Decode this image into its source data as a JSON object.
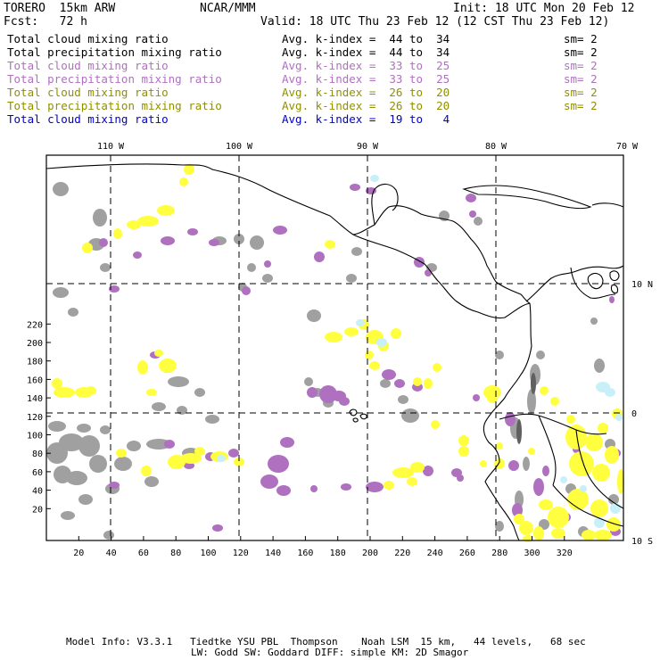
{
  "header": {
    "model": "TORERO  15km ARW",
    "org": "NCAR/MMM",
    "init": "Init: 18 UTC Mon 20 Feb 12",
    "fcst": "Fcst:   72 h",
    "valid": "Valid: 18 UTC Thu 23 Feb 12 (12 CST Thu 23 Feb 12)"
  },
  "legend": [
    {
      "field": "Total cloud mixing ratio",
      "index": "Avg. k-index =  44 to  34",
      "sm": "sm= 2",
      "color": "#000000"
    },
    {
      "field": "Total precipitation mixing ratio",
      "index": "Avg. k-index =  44 to  34",
      "sm": "sm= 2",
      "color": "#000000"
    },
    {
      "field": "Total cloud mixing ratio",
      "index": "Avg. k-index =  33 to  25",
      "sm": "sm= 2",
      "color": "#b070c0"
    },
    {
      "field": "Total precipitation mixing ratio",
      "index": "Avg. k-index =  33 to  25",
      "sm": "sm= 2",
      "color": "#b070c0"
    },
    {
      "field": "Total cloud mixing ratio",
      "index": "Avg. k-index =  26 to  20",
      "sm": "sm= 2",
      "color": "#909000"
    },
    {
      "field": "Total precipitation mixing ratio",
      "index": "Avg. k-index =  26 to  20",
      "sm": "sm= 2",
      "color": "#909000"
    },
    {
      "field": "Total cloud mixing ratio",
      "index": "Avg. k-index =  19 to   4",
      "sm": "",
      "color": "#0000d0"
    }
  ],
  "map": {
    "lon_labels": [
      "110 W",
      "100 W",
      "90 W",
      "80 W",
      "70 W"
    ],
    "lat_labels": [
      "10 N",
      "0",
      "10 S"
    ],
    "y_ticks": [
      "220",
      "200",
      "180",
      "160",
      "140",
      "120",
      "100",
      "80",
      "60",
      "40",
      "20"
    ],
    "x_ticks": [
      "20",
      "40",
      "60",
      "80",
      "100",
      "120",
      "140",
      "160",
      "180",
      "200",
      "220",
      "240",
      "260",
      "280",
      "300",
      "320"
    ],
    "colors": {
      "gray": "#a0a0a0",
      "purple": "#b070c0",
      "yellow": "#ffff40",
      "cyan": "#c8f0f8"
    }
  },
  "footer": {
    "line1": "Model Info: V3.3.1   Tiedtke YSU PBL  Thompson    Noah LSM  15 km,   44 levels,   68 sec",
    "line2": "LW: Godd SW: Goddard DIFF: simple KM: 2D Smagor"
  }
}
